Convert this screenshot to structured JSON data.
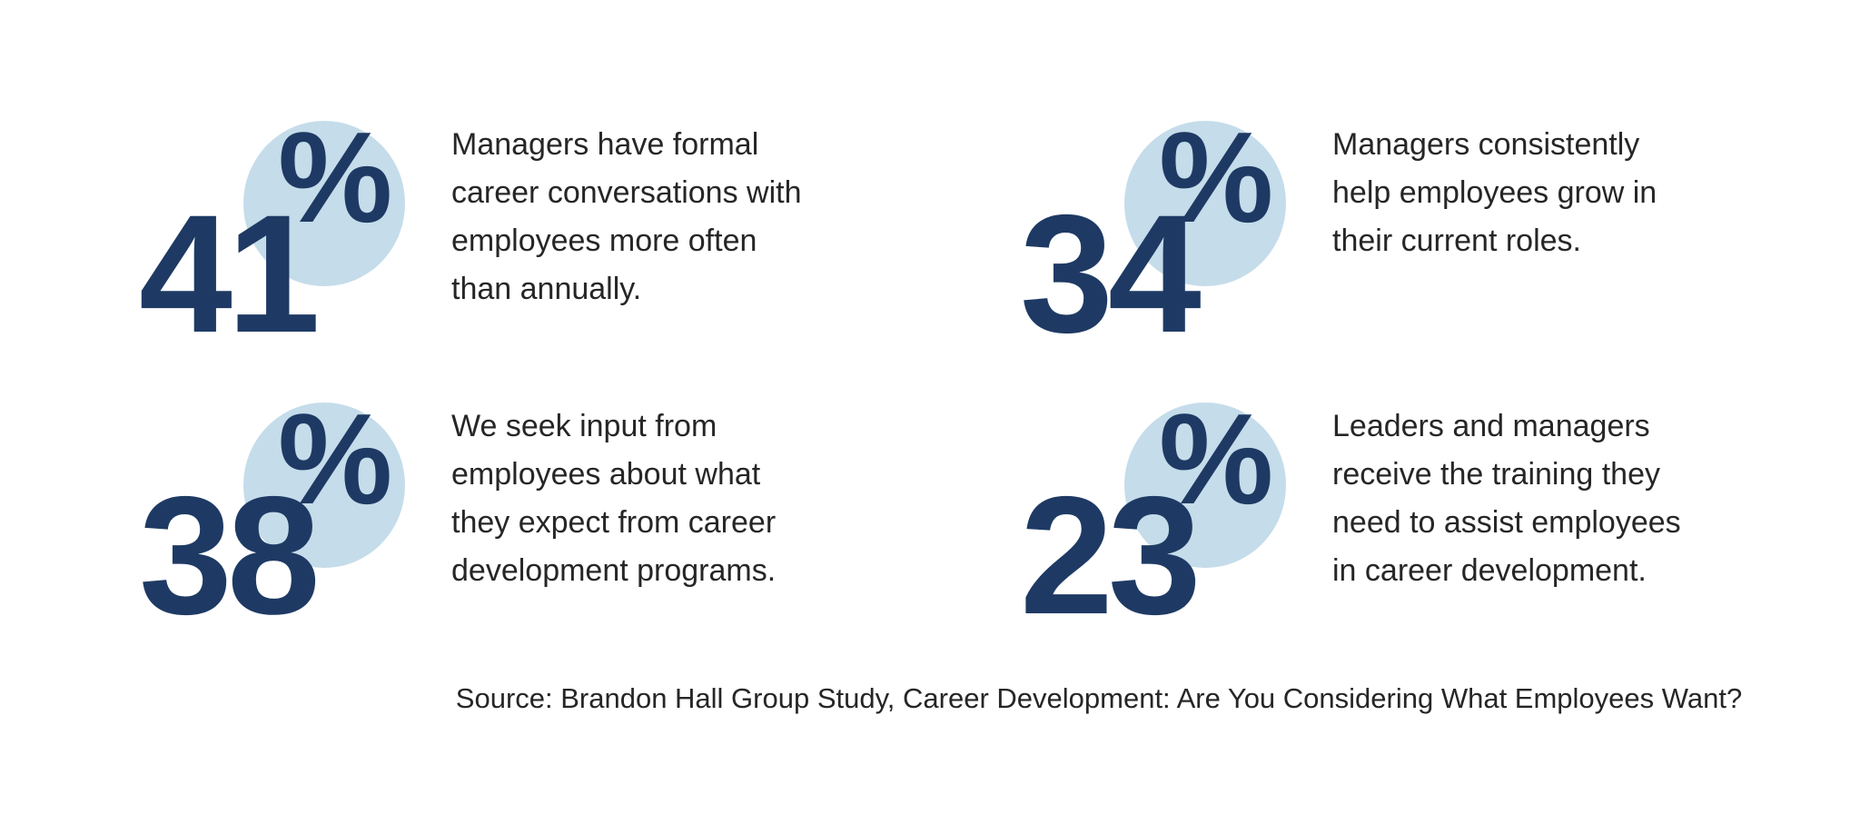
{
  "page": {
    "background": "#ffffff"
  },
  "colors": {
    "accent_navy": "#1e3a64",
    "accent_light_blue": "#c5dcea",
    "body_text": "#262626"
  },
  "stats": [
    {
      "value": "41",
      "percent_sign": "%",
      "description": "Managers have formal career conversations with employees more often than annually.",
      "lines": [
        "Managers have formal",
        "career conversations with",
        "employees more often",
        "than annually."
      ]
    },
    {
      "value": "34",
      "percent_sign": "%",
      "description": "Managers consistently help employees grow in their current roles.",
      "lines": [
        "Managers consistently",
        "help employees grow in",
        "their current roles."
      ]
    },
    {
      "value": "38",
      "percent_sign": "%",
      "description": "We seek input from employees about what they expect from career development programs.",
      "lines": [
        "We seek input from",
        "employees about what",
        "they expect from career",
        "development programs."
      ]
    },
    {
      "value": "23",
      "percent_sign": "%",
      "description": "Leaders and managers receive the training they need to assist employees in career development.",
      "lines": [
        "Leaders and managers",
        "receive the training they",
        "need to assist employees",
        "in career development."
      ]
    }
  ],
  "source": {
    "text": "Source: Brandon Hall Group Study, Career Development: Are You Considering What Employees Want?"
  },
  "chart_data": {
    "type": "table",
    "title": "",
    "categories": [
      "Managers have formal career conversations with employees more often than annually.",
      "Managers consistently help employees grow in their current roles.",
      "We seek input from employees about what they expect from career development programs.",
      "Leaders and managers receive the training they need to assist employees in career development."
    ],
    "values": [
      41,
      34,
      38,
      23
    ],
    "unit": "%",
    "source": "Source: Brandon Hall Group Study, Career Development: Are You Considering What Employees Want?"
  }
}
